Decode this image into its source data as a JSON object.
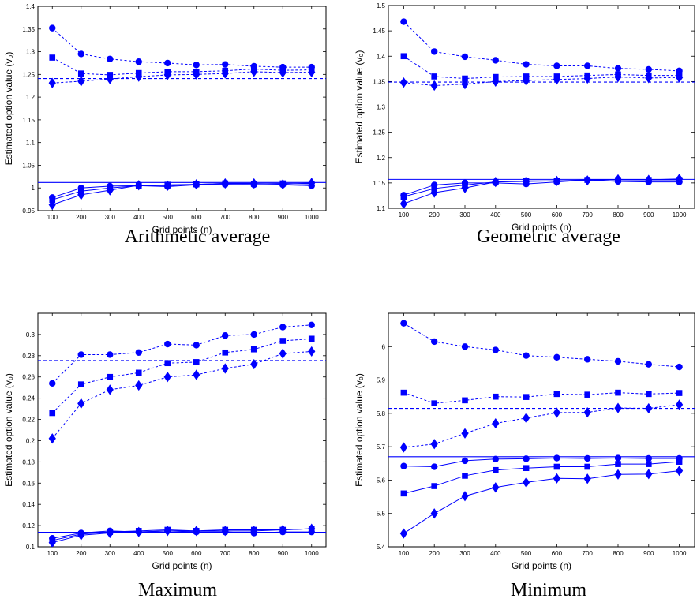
{
  "figure": {
    "marker_color": "#0000ff",
    "line_color": "#0000ff"
  },
  "chart_data": [
    {
      "type": "line",
      "caption": "Arithmetic average",
      "xlabel": "Grid points (n)",
      "ylabel": "Estimated option value (v₀)",
      "x": [
        100,
        200,
        300,
        400,
        500,
        600,
        700,
        800,
        900,
        1000
      ],
      "xlim": [
        50,
        1050
      ],
      "ylim": [
        0.95,
        1.4
      ],
      "yticks": [
        0.95,
        1,
        1.05,
        1.1,
        1.15,
        1.2,
        1.25,
        1.3,
        1.35,
        1.4
      ],
      "ytick_labels": [
        "0.95",
        "1",
        "1.05",
        "1.1",
        "1.15",
        "1.2",
        "1.25",
        "1.3",
        "1.35",
        "1.4"
      ],
      "reference_lines": [
        {
          "value": 1.241,
          "style": "dashed"
        },
        {
          "value": 1.012,
          "style": "solid"
        }
      ],
      "series": [
        {
          "marker": "circle",
          "style": "dashed",
          "values": [
            1.352,
            1.295,
            1.284,
            1.278,
            1.275,
            1.271,
            1.272,
            1.268,
            1.266,
            1.266
          ]
        },
        {
          "marker": "square",
          "style": "dashed",
          "values": [
            1.287,
            1.252,
            1.249,
            1.253,
            1.256,
            1.256,
            1.258,
            1.262,
            1.259,
            1.26
          ]
        },
        {
          "marker": "diamond",
          "style": "dashed",
          "values": [
            1.231,
            1.235,
            1.24,
            1.245,
            1.249,
            1.25,
            1.252,
            1.256,
            1.254,
            1.255
          ]
        },
        {
          "marker": "circle",
          "style": "solid",
          "values": [
            0.979,
            1.0,
            1.004,
            1.005,
            1.003,
            1.007,
            1.008,
            1.007,
            1.007,
            1.005
          ]
        },
        {
          "marker": "square",
          "style": "solid",
          "values": [
            0.974,
            0.993,
            1.0,
            1.005,
            1.007,
            1.008,
            1.01,
            1.009,
            1.01,
            1.009
          ]
        },
        {
          "marker": "diamond",
          "style": "solid",
          "values": [
            0.963,
            0.985,
            0.995,
            1.006,
            1.005,
            1.008,
            1.01,
            1.01,
            1.008,
            1.011
          ]
        }
      ]
    },
    {
      "type": "line",
      "caption": "Geometric average",
      "xlabel": "Grid points (n)",
      "ylabel": "Estimated option value (v₀)",
      "x": [
        100,
        200,
        300,
        400,
        500,
        600,
        700,
        800,
        900,
        1000
      ],
      "xlim": [
        50,
        1050
      ],
      "ylim": [
        1.1,
        1.5
      ],
      "yticks": [
        1.1,
        1.15,
        1.2,
        1.25,
        1.3,
        1.35,
        1.4,
        1.45,
        1.5
      ],
      "ytick_labels": [
        "1.1",
        "1.15",
        "1.2",
        "1.25",
        "1.3",
        "1.35",
        "1.4",
        "1.45",
        "1.5"
      ],
      "reference_lines": [
        {
          "value": 1.349,
          "style": "dashed"
        },
        {
          "value": 1.157,
          "style": "solid"
        }
      ],
      "series": [
        {
          "marker": "circle",
          "style": "dashed",
          "values": [
            1.468,
            1.409,
            1.399,
            1.392,
            1.384,
            1.381,
            1.381,
            1.376,
            1.374,
            1.371
          ]
        },
        {
          "marker": "square",
          "style": "dashed",
          "values": [
            1.4,
            1.36,
            1.356,
            1.359,
            1.36,
            1.36,
            1.362,
            1.364,
            1.362,
            1.362
          ]
        },
        {
          "marker": "diamond",
          "style": "dashed",
          "values": [
            1.348,
            1.342,
            1.345,
            1.35,
            1.352,
            1.354,
            1.356,
            1.359,
            1.357,
            1.358
          ]
        },
        {
          "marker": "circle",
          "style": "solid",
          "values": [
            1.126,
            1.146,
            1.15,
            1.15,
            1.148,
            1.152,
            1.156,
            1.153,
            1.152,
            1.152
          ]
        },
        {
          "marker": "square",
          "style": "solid",
          "values": [
            1.123,
            1.139,
            1.146,
            1.152,
            1.154,
            1.154,
            1.156,
            1.156,
            1.156,
            1.156
          ]
        },
        {
          "marker": "diamond",
          "style": "solid",
          "values": [
            1.109,
            1.131,
            1.14,
            1.152,
            1.153,
            1.154,
            1.155,
            1.157,
            1.156,
            1.158
          ]
        }
      ]
    },
    {
      "type": "line",
      "caption": "Maximum",
      "xlabel": "Grid points (n)",
      "ylabel": "Estimated option value (v₀)",
      "x": [
        100,
        200,
        300,
        400,
        500,
        600,
        700,
        800,
        900,
        1000
      ],
      "xlim": [
        50,
        1050
      ],
      "ylim": [
        0.1,
        0.32
      ],
      "yticks": [
        0.1,
        0.12,
        0.14,
        0.16,
        0.18,
        0.2,
        0.22,
        0.24,
        0.26,
        0.28,
        0.3
      ],
      "ytick_labels": [
        "0.1",
        "0.12",
        "0.14",
        "0.16",
        "0.18",
        "0.2",
        "0.22",
        "0.24",
        "0.26",
        "0.28",
        "0.3"
      ],
      "reference_lines": [
        {
          "value": 0.2755,
          "style": "dashed"
        },
        {
          "value": 0.1137,
          "style": "solid"
        }
      ],
      "series": [
        {
          "marker": "circle",
          "style": "dashed",
          "values": [
            0.254,
            0.281,
            0.281,
            0.283,
            0.291,
            0.29,
            0.299,
            0.3,
            0.307,
            0.309
          ]
        },
        {
          "marker": "square",
          "style": "dashed",
          "values": [
            0.226,
            0.253,
            0.26,
            0.264,
            0.273,
            0.274,
            0.283,
            0.286,
            0.294,
            0.296
          ]
        },
        {
          "marker": "diamond",
          "style": "dashed",
          "values": [
            0.202,
            0.235,
            0.248,
            0.252,
            0.26,
            0.262,
            0.268,
            0.272,
            0.282,
            0.284
          ]
        },
        {
          "marker": "circle",
          "style": "solid",
          "values": [
            0.108,
            0.113,
            0.115,
            0.114,
            0.115,
            0.114,
            0.114,
            0.113,
            0.114,
            0.114
          ]
        },
        {
          "marker": "square",
          "style": "solid",
          "values": [
            0.106,
            0.112,
            0.114,
            0.115,
            0.116,
            0.115,
            0.116,
            0.116,
            0.116,
            0.117
          ]
        },
        {
          "marker": "diamond",
          "style": "solid",
          "values": [
            0.104,
            0.111,
            0.113,
            0.114,
            0.115,
            0.115,
            0.115,
            0.115,
            0.116,
            0.117
          ]
        }
      ]
    },
    {
      "type": "line",
      "caption": "Minimum",
      "xlabel": "Grid points (n)",
      "ylabel": "Estimated option value (v₀)",
      "x": [
        100,
        200,
        300,
        400,
        500,
        600,
        700,
        800,
        900,
        1000
      ],
      "xlim": [
        50,
        1050
      ],
      "ylim": [
        5.4,
        6.1
      ],
      "yticks": [
        5.4,
        5.5,
        5.6,
        5.7,
        5.8,
        5.9,
        6
      ],
      "ytick_labels": [
        "5.4",
        "5.5",
        "5.6",
        "5.7",
        "5.8",
        "5.9",
        "6"
      ],
      "reference_lines": [
        {
          "value": 5.815,
          "style": "dashed"
        },
        {
          "value": 5.67,
          "style": "solid"
        }
      ],
      "series": [
        {
          "marker": "circle",
          "style": "dashed",
          "values": [
            6.07,
            6.015,
            6.0,
            5.99,
            5.973,
            5.968,
            5.962,
            5.956,
            5.947,
            5.939
          ]
        },
        {
          "marker": "square",
          "style": "dashed",
          "values": [
            5.862,
            5.83,
            5.839,
            5.85,
            5.849,
            5.858,
            5.856,
            5.862,
            5.858,
            5.861
          ]
        },
        {
          "marker": "diamond",
          "style": "dashed",
          "values": [
            5.698,
            5.708,
            5.74,
            5.77,
            5.786,
            5.802,
            5.803,
            5.816,
            5.815,
            5.826
          ]
        },
        {
          "marker": "circle",
          "style": "solid",
          "values": [
            5.642,
            5.64,
            5.658,
            5.663,
            5.664,
            5.666,
            5.665,
            5.666,
            5.665,
            5.665
          ]
        },
        {
          "marker": "square",
          "style": "solid",
          "values": [
            5.56,
            5.582,
            5.613,
            5.63,
            5.636,
            5.64,
            5.64,
            5.648,
            5.648,
            5.655
          ]
        },
        {
          "marker": "diamond",
          "style": "solid",
          "values": [
            5.44,
            5.5,
            5.552,
            5.578,
            5.593,
            5.605,
            5.604,
            5.617,
            5.618,
            5.628
          ]
        }
      ]
    }
  ]
}
